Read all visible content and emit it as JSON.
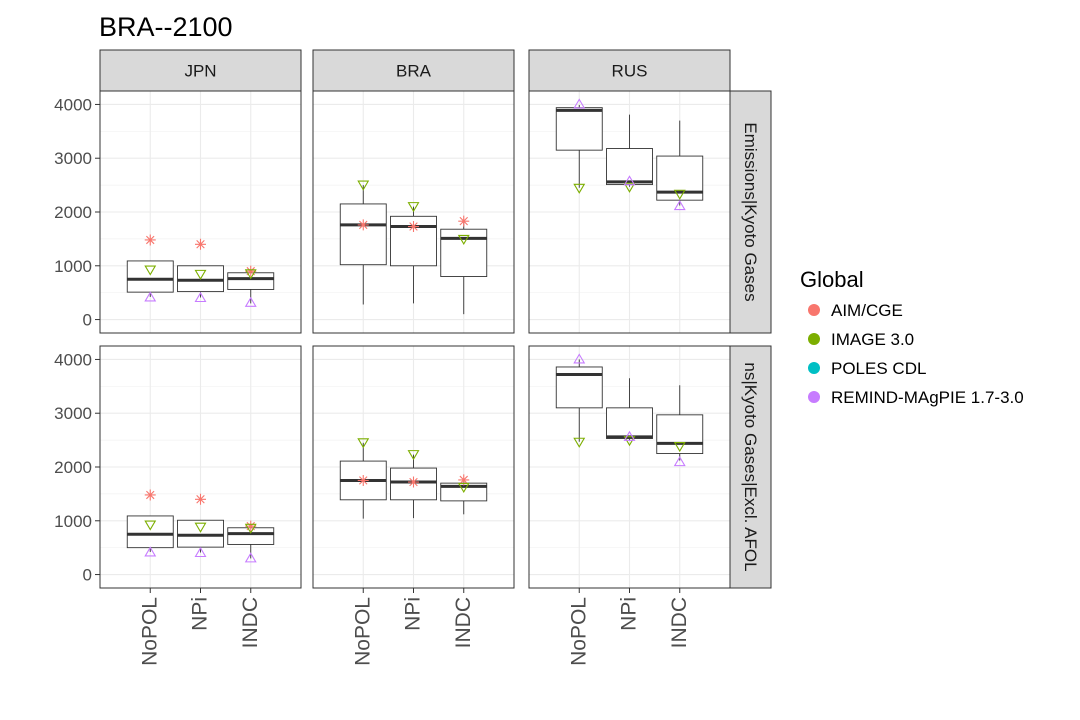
{
  "chart_data": {
    "type": "box",
    "title": "BRA--2100",
    "facet_columns": [
      "JPN",
      "BRA",
      "RUS"
    ],
    "facet_rows": [
      "Emissions|Kyoto Gases",
      "Emissions|Kyoto Gases|Excl. AFOLU"
    ],
    "row_strip_texts": [
      "Emissions|Kyoto Gases",
      "ns|Kyoto Gases|Excl. AFOL"
    ],
    "categories": [
      "NoPOL",
      "NPi",
      "INDC"
    ],
    "ylim": [
      -250,
      4250
    ],
    "yticks": [
      0,
      1000,
      2000,
      3000,
      4000
    ],
    "grid": true,
    "legend": {
      "title": "Global",
      "position": "right",
      "entries": [
        {
          "name": "AIM/CGE",
          "color": "#F8766D",
          "shape": "asterisk"
        },
        {
          "name": "IMAGE 3.0",
          "color": "#7CAE00",
          "shape": "triangle-down"
        },
        {
          "name": "POLES CDL",
          "color": "#00BFC4",
          "shape": "circle"
        },
        {
          "name": "REMIND-MAgPIE 1.7-3.0",
          "color": "#C77CFF",
          "shape": "triangle-up"
        }
      ]
    },
    "panels": [
      {
        "row": 0,
        "col": 0,
        "boxes": [
          {
            "category": "NoPOL",
            "whisker_low": 420,
            "q1": 510,
            "median": 750,
            "q3": 1090,
            "whisker_high": 1090
          },
          {
            "category": "NPi",
            "whisker_low": 410,
            "q1": 520,
            "median": 730,
            "q3": 1000,
            "whisker_high": 1000
          },
          {
            "category": "INDC",
            "whisker_low": 300,
            "q1": 560,
            "median": 760,
            "q3": 870,
            "whisker_high": 900
          }
        ],
        "points": [
          {
            "category": "NoPOL",
            "model": "AIM/CGE",
            "value": 1480
          },
          {
            "category": "NoPOL",
            "model": "IMAGE 3.0",
            "value": 920
          },
          {
            "category": "NoPOL",
            "model": "REMIND-MAgPIE 1.7-3.0",
            "value": 420
          },
          {
            "category": "NPi",
            "model": "AIM/CGE",
            "value": 1400
          },
          {
            "category": "NPi",
            "model": "IMAGE 3.0",
            "value": 840
          },
          {
            "category": "NPi",
            "model": "REMIND-MAgPIE 1.7-3.0",
            "value": 410
          },
          {
            "category": "INDC",
            "model": "AIM/CGE",
            "value": 900
          },
          {
            "category": "INDC",
            "model": "IMAGE 3.0",
            "value": 850
          },
          {
            "category": "INDC",
            "model": "REMIND-MAgPIE 1.7-3.0",
            "value": 320
          }
        ]
      },
      {
        "row": 0,
        "col": 1,
        "boxes": [
          {
            "category": "NoPOL",
            "whisker_low": 280,
            "q1": 1020,
            "median": 1760,
            "q3": 2150,
            "whisker_high": 2500
          },
          {
            "category": "NPi",
            "whisker_low": 300,
            "q1": 1000,
            "median": 1730,
            "q3": 1920,
            "whisker_high": 2100
          },
          {
            "category": "INDC",
            "whisker_low": 100,
            "q1": 800,
            "median": 1510,
            "q3": 1680,
            "whisker_high": 1830
          }
        ],
        "points": [
          {
            "category": "NoPOL",
            "model": "AIM/CGE",
            "value": 1760
          },
          {
            "category": "NoPOL",
            "model": "IMAGE 3.0",
            "value": 2500
          },
          {
            "category": "NPi",
            "model": "AIM/CGE",
            "value": 1730
          },
          {
            "category": "NPi",
            "model": "IMAGE 3.0",
            "value": 2100
          },
          {
            "category": "INDC",
            "model": "AIM/CGE",
            "value": 1830
          },
          {
            "category": "INDC",
            "model": "IMAGE 3.0",
            "value": 1490
          }
        ]
      },
      {
        "row": 0,
        "col": 2,
        "boxes": [
          {
            "category": "NoPOL",
            "whisker_low": 2450,
            "q1": 3150,
            "median": 3890,
            "q3": 3940,
            "whisker_high": 3990
          },
          {
            "category": "NPi",
            "whisker_low": 2470,
            "q1": 2510,
            "median": 2560,
            "q3": 3180,
            "whisker_high": 3810
          },
          {
            "category": "INDC",
            "whisker_low": 2120,
            "q1": 2220,
            "median": 2370,
            "q3": 3040,
            "whisker_high": 3700
          }
        ],
        "points": [
          {
            "category": "NoPOL",
            "model": "IMAGE 3.0",
            "value": 2440
          },
          {
            "category": "NoPOL",
            "model": "REMIND-MAgPIE 1.7-3.0",
            "value": 4010
          },
          {
            "category": "NPi",
            "model": "IMAGE 3.0",
            "value": 2460
          },
          {
            "category": "NPi",
            "model": "REMIND-MAgPIE 1.7-3.0",
            "value": 2580
          },
          {
            "category": "INDC",
            "model": "IMAGE 3.0",
            "value": 2330
          },
          {
            "category": "INDC",
            "model": "REMIND-MAgPIE 1.7-3.0",
            "value": 2120
          }
        ]
      },
      {
        "row": 1,
        "col": 0,
        "boxes": [
          {
            "category": "NoPOL",
            "whisker_low": 420,
            "q1": 500,
            "median": 750,
            "q3": 1090,
            "whisker_high": 1090
          },
          {
            "category": "NPi",
            "whisker_low": 410,
            "q1": 510,
            "median": 730,
            "q3": 1010,
            "whisker_high": 1010
          },
          {
            "category": "INDC",
            "whisker_low": 300,
            "q1": 560,
            "median": 760,
            "q3": 870,
            "whisker_high": 900
          }
        ],
        "points": [
          {
            "category": "NoPOL",
            "model": "AIM/CGE",
            "value": 1480
          },
          {
            "category": "NoPOL",
            "model": "IMAGE 3.0",
            "value": 920
          },
          {
            "category": "NoPOL",
            "model": "REMIND-MAgPIE 1.7-3.0",
            "value": 420
          },
          {
            "category": "NPi",
            "model": "AIM/CGE",
            "value": 1400
          },
          {
            "category": "NPi",
            "model": "IMAGE 3.0",
            "value": 880
          },
          {
            "category": "NPi",
            "model": "REMIND-MAgPIE 1.7-3.0",
            "value": 410
          },
          {
            "category": "INDC",
            "model": "AIM/CGE",
            "value": 900
          },
          {
            "category": "INDC",
            "model": "IMAGE 3.0",
            "value": 860
          },
          {
            "category": "INDC",
            "model": "REMIND-MAgPIE 1.7-3.0",
            "value": 310
          }
        ]
      },
      {
        "row": 1,
        "col": 1,
        "boxes": [
          {
            "category": "NoPOL",
            "whisker_low": 1040,
            "q1": 1390,
            "median": 1750,
            "q3": 2110,
            "whisker_high": 2450
          },
          {
            "category": "NPi",
            "whisker_low": 1050,
            "q1": 1390,
            "median": 1720,
            "q3": 1980,
            "whisker_high": 2230
          },
          {
            "category": "INDC",
            "whisker_low": 1120,
            "q1": 1370,
            "median": 1640,
            "q3": 1700,
            "whisker_high": 1760
          }
        ],
        "points": [
          {
            "category": "NoPOL",
            "model": "AIM/CGE",
            "value": 1750
          },
          {
            "category": "NoPOL",
            "model": "IMAGE 3.0",
            "value": 2450
          },
          {
            "category": "NPi",
            "model": "AIM/CGE",
            "value": 1720
          },
          {
            "category": "NPi",
            "model": "IMAGE 3.0",
            "value": 2230
          },
          {
            "category": "INDC",
            "model": "AIM/CGE",
            "value": 1760
          },
          {
            "category": "INDC",
            "model": "IMAGE 3.0",
            "value": 1620
          }
        ]
      },
      {
        "row": 1,
        "col": 2,
        "boxes": [
          {
            "category": "NoPOL",
            "whisker_low": 2470,
            "q1": 3100,
            "median": 3720,
            "q3": 3860,
            "whisker_high": 4000
          },
          {
            "category": "NPi",
            "whisker_low": 2490,
            "q1": 2530,
            "median": 2560,
            "q3": 3100,
            "whisker_high": 3650
          },
          {
            "category": "INDC",
            "whisker_low": 2120,
            "q1": 2250,
            "median": 2440,
            "q3": 2970,
            "whisker_high": 3520
          }
        ],
        "points": [
          {
            "category": "NoPOL",
            "model": "IMAGE 3.0",
            "value": 2460
          },
          {
            "category": "NoPOL",
            "model": "REMIND-MAgPIE 1.7-3.0",
            "value": 4010
          },
          {
            "category": "NPi",
            "model": "IMAGE 3.0",
            "value": 2490
          },
          {
            "category": "NPi",
            "model": "REMIND-MAgPIE 1.7-3.0",
            "value": 2570
          },
          {
            "category": "INDC",
            "model": "IMAGE 3.0",
            "value": 2380
          },
          {
            "category": "INDC",
            "model": "REMIND-MAgPIE 1.7-3.0",
            "value": 2100
          }
        ]
      }
    ]
  }
}
